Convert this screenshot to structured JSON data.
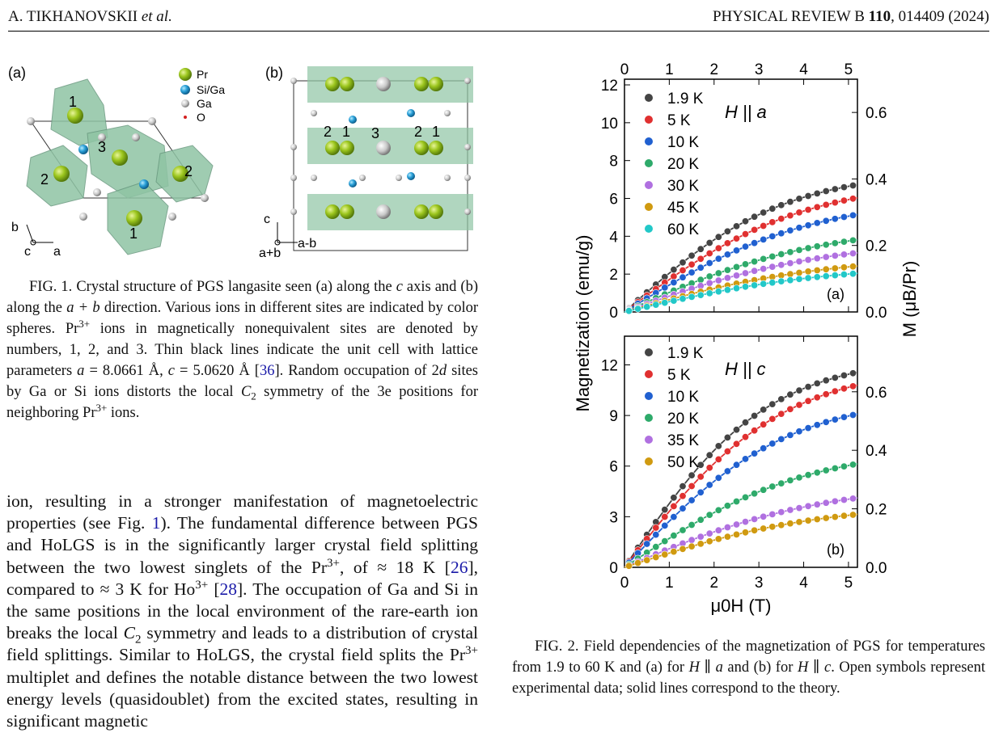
{
  "header": {
    "authors": "A. TIKHANOVSKII",
    "etal": "et al.",
    "journal": "PHYSICAL REVIEW B",
    "volume": "110",
    "article": ", 014409 (2024)"
  },
  "fig1": {
    "panel_a": "(a)",
    "panel_b": "(b)",
    "legend": [
      "Pr",
      "Si/Ga",
      "Ga",
      "O"
    ],
    "legend_colors": [
      "#9cc61e",
      "#2aa0d8",
      "#c8c8c8",
      "#d42020"
    ],
    "poly_color": "#8fc4a4",
    "site_numbers_a": [
      "1",
      "3",
      "2",
      "2",
      "1"
    ],
    "site_numbers_b": [
      "2",
      "1",
      "3",
      "2",
      "1"
    ],
    "axes_a": {
      "b": "b",
      "c": "c",
      "a": "a"
    },
    "axes_b": {
      "c": "c",
      "apb": "a+b",
      "amb": "a-b"
    }
  },
  "caption1": {
    "label": "FIG. 1.",
    "parts": [
      " Crystal structure of PGS langasite seen (a) along the ",
      "c",
      " axis and (b) along the ",
      "a + b",
      " direction. Various ions in different sites are indicated by color spheres. Pr",
      "3+",
      " ions in magnetically nonequivalent sites are denoted by numbers, 1, 2, and 3. Thin black lines indicate the unit cell with lattice parameters ",
      "a",
      " = 8.0661 Å, ",
      "c",
      " = 5.0620 Å [",
      "36",
      "]. Random occupation of 2",
      "d",
      " sites by Ga or Si ions distorts the local ",
      "C",
      "2",
      " symmetry of the 3e positions for neighboring Pr",
      "3+",
      " ions."
    ]
  },
  "body": {
    "parts": [
      "ion, resulting in a stronger manifestation of magnetoelectric properties (see Fig. ",
      "1",
      "). The fundamental difference between PGS and HoLGS is in the significantly larger crystal field splitting between the two lowest singlets of the Pr",
      "3+",
      ", of ≈ 18 K [",
      "26",
      "], compared to ≈ 3 K for Ho",
      "3+",
      " [",
      "28",
      "]. The occupation of Ga and Si in the same positions in the local environment of the rare-earth ion breaks the local ",
      "C",
      "2",
      " symmetry and leads to a distribution of crystal field splittings. Similar to HoLGS, the crystal field splits the Pr",
      "3+",
      " multiplet and defines the notable distance between the two lowest energy levels (quasidoublet) from the excited states, resulting in significant magnetic"
    ]
  },
  "caption2": {
    "label": "FIG. 2.",
    "parts": [
      " Field dependencies of the magnetization of PGS for temperatures from 1.9 to 60 K and (a) for ",
      "H",
      " ∥ ",
      "a",
      " and (b) for ",
      "H",
      " ∥ ",
      "c",
      ". Open symbols represent experimental data; solid lines correspond to the theory."
    ]
  },
  "chart_data": [
    {
      "type": "scatter",
      "panel": "(a)",
      "annotation": "H || a",
      "top_axis_ticks": [
        "0",
        "1",
        "2",
        "3",
        "4",
        "5"
      ],
      "ylabel": "Magnetization (emu/g)",
      "y2label": "M (μB/Pr)",
      "yticks": [
        "0",
        "2",
        "4",
        "6",
        "8",
        "10",
        "12"
      ],
      "y2ticks": [
        "0.0",
        "0.2",
        "0.4",
        "0.6"
      ],
      "xlim": [
        0,
        5.2
      ],
      "ylim": [
        0,
        12.3
      ],
      "y2lim": [
        0,
        0.7
      ],
      "x": [
        0.1,
        0.3,
        0.5,
        0.7,
        0.9,
        1.1,
        1.3,
        1.5,
        1.7,
        1.9,
        2.1,
        2.3,
        2.5,
        2.7,
        2.9,
        3.1,
        3.3,
        3.5,
        3.7,
        3.9,
        4.1,
        4.3,
        4.5,
        4.7,
        4.9,
        5.1
      ],
      "series": [
        {
          "name": "1.9 K",
          "color": "#444444",
          "slope0": 2.1,
          "max": 7.5
        },
        {
          "name": "5 K",
          "color": "#e03030",
          "slope0": 1.75,
          "max": 7.0
        },
        {
          "name": "10 K",
          "color": "#2060d0",
          "slope0": 1.45,
          "max": 6.1
        },
        {
          "name": "20 K",
          "color": "#2eaa6a",
          "slope0": 1.05,
          "max": 4.6
        },
        {
          "name": "30 K",
          "color": "#b070e0",
          "slope0": 0.85,
          "max": 3.8
        },
        {
          "name": "45 K",
          "color": "#d09a10",
          "slope0": 0.66,
          "max": 2.95
        },
        {
          "name": "60 K",
          "color": "#22c8c8",
          "slope0": 0.55,
          "max": 2.5
        }
      ]
    },
    {
      "type": "scatter",
      "panel": "(b)",
      "annotation": "H || c",
      "xlabel": "μ0H (T)",
      "xticks": [
        "0",
        "1",
        "2",
        "3",
        "4",
        "5"
      ],
      "yticks": [
        "0",
        "3",
        "6",
        "9",
        "12"
      ],
      "y2ticks": [
        "0.0",
        "0.2",
        "0.4",
        "0.6"
      ],
      "xlim": [
        0,
        5.2
      ],
      "ylim": [
        0,
        13.7
      ],
      "y2lim": [
        0,
        0.79
      ],
      "x": [
        0.1,
        0.3,
        0.5,
        0.7,
        0.9,
        1.1,
        1.3,
        1.5,
        1.7,
        1.9,
        2.1,
        2.3,
        2.5,
        2.7,
        2.9,
        3.1,
        3.3,
        3.5,
        3.7,
        3.9,
        4.1,
        4.3,
        4.5,
        4.7,
        4.9,
        5.1
      ],
      "series": [
        {
          "name": "1.9 K",
          "color": "#444444",
          "slope0": 3.9,
          "max": 12.5
        },
        {
          "name": "5 K",
          "color": "#e03030",
          "slope0": 3.4,
          "max": 12.0
        },
        {
          "name": "10 K",
          "color": "#2060d0",
          "slope0": 2.8,
          "max": 10.2
        },
        {
          "name": "20 K",
          "color": "#2eaa6a",
          "slope0": 1.75,
          "max": 7.2
        },
        {
          "name": "35 K",
          "color": "#b070e0",
          "slope0": 1.12,
          "max": 5.0
        },
        {
          "name": "50 K",
          "color": "#d09a10",
          "slope0": 0.86,
          "max": 3.8
        }
      ]
    }
  ]
}
